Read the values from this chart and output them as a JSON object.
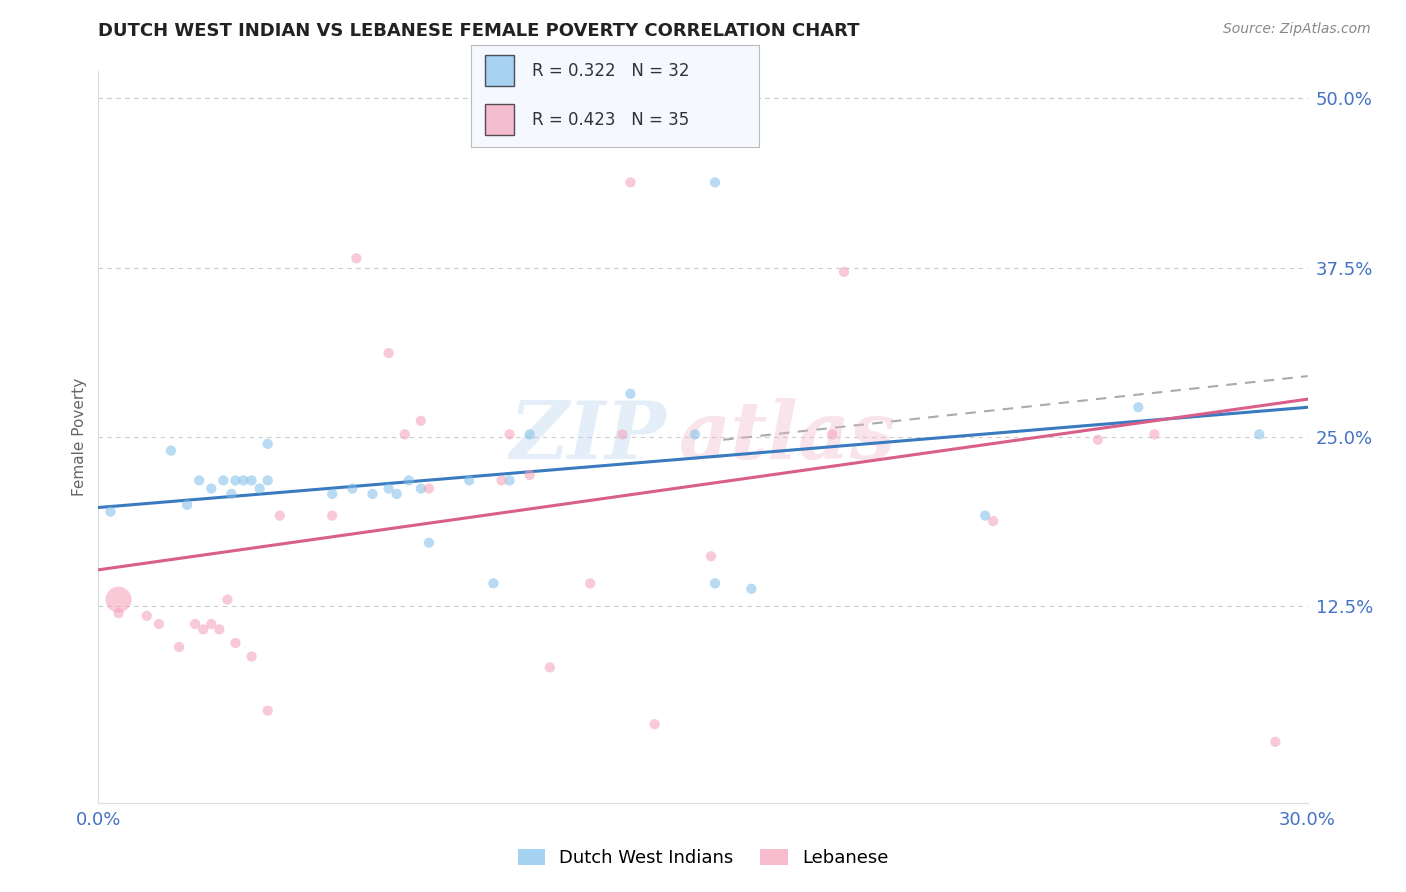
{
  "title": "DUTCH WEST INDIAN VS LEBANESE FEMALE POVERTY CORRELATION CHART",
  "source": "Source: ZipAtlas.com",
  "ylabel_text": "Female Poverty",
  "x_min": 0.0,
  "x_max": 0.3,
  "y_min": -0.02,
  "y_max": 0.52,
  "y_ticks": [
    0.0,
    0.125,
    0.25,
    0.375,
    0.5
  ],
  "x_ticks": [
    0.0,
    0.05,
    0.1,
    0.15,
    0.2,
    0.25,
    0.3
  ],
  "blue_color": "#7fbfea",
  "pink_color": "#f4a0b8",
  "blue_line_color": "#3a7abf",
  "pink_line_color": "#d95f8a",
  "dashed_line_color": "#aaaaaa",
  "r_blue": 0.322,
  "n_blue": 32,
  "r_pink": 0.423,
  "n_pink": 35,
  "blue_scatter_x": [
    0.003,
    0.018,
    0.022,
    0.025,
    0.028,
    0.031,
    0.033,
    0.034,
    0.036,
    0.038,
    0.04,
    0.042,
    0.042,
    0.058,
    0.063,
    0.068,
    0.072,
    0.074,
    0.077,
    0.08,
    0.082,
    0.092,
    0.098,
    0.102,
    0.107,
    0.132,
    0.148,
    0.153,
    0.162,
    0.22,
    0.258,
    0.288
  ],
  "blue_scatter_y": [
    0.195,
    0.24,
    0.2,
    0.218,
    0.212,
    0.218,
    0.208,
    0.218,
    0.218,
    0.218,
    0.212,
    0.218,
    0.245,
    0.208,
    0.212,
    0.208,
    0.212,
    0.208,
    0.218,
    0.212,
    0.172,
    0.218,
    0.142,
    0.218,
    0.252,
    0.282,
    0.252,
    0.142,
    0.138,
    0.192,
    0.272,
    0.252
  ],
  "blue_outlier_x": [
    0.153
  ],
  "blue_outlier_y": [
    0.438
  ],
  "pink_scatter_x": [
    0.005,
    0.012,
    0.015,
    0.02,
    0.024,
    0.026,
    0.028,
    0.03,
    0.032,
    0.034,
    0.038,
    0.042,
    0.045,
    0.058,
    0.064,
    0.072,
    0.076,
    0.08,
    0.082,
    0.1,
    0.102,
    0.107,
    0.112,
    0.122,
    0.13,
    0.138,
    0.152,
    0.182,
    0.185,
    0.222,
    0.248,
    0.262,
    0.292
  ],
  "pink_scatter_y": [
    0.12,
    0.118,
    0.112,
    0.095,
    0.112,
    0.108,
    0.112,
    0.108,
    0.13,
    0.098,
    0.088,
    0.048,
    0.192,
    0.192,
    0.382,
    0.312,
    0.252,
    0.262,
    0.212,
    0.218,
    0.252,
    0.222,
    0.08,
    0.142,
    0.252,
    0.038,
    0.162,
    0.252,
    0.372,
    0.188,
    0.248,
    0.252,
    0.025
  ],
  "pink_big_x": [
    0.005
  ],
  "pink_big_y": [
    0.13
  ],
  "pink_big_size": 350,
  "pink_outlier_x": [
    0.132
  ],
  "pink_outlier_y": [
    0.438
  ],
  "blue_line_x": [
    0.0,
    0.3
  ],
  "blue_line_y": [
    0.198,
    0.272
  ],
  "pink_line_x": [
    0.0,
    0.3
  ],
  "pink_line_y": [
    0.152,
    0.278
  ],
  "dashed_line_x": [
    0.155,
    0.3
  ],
  "dashed_line_y": [
    0.248,
    0.295
  ],
  "background_color": "#ffffff",
  "grid_color": "#cccccc",
  "axis_label_color": "#4472c4",
  "title_color": "#222222",
  "scatter_size": 55
}
